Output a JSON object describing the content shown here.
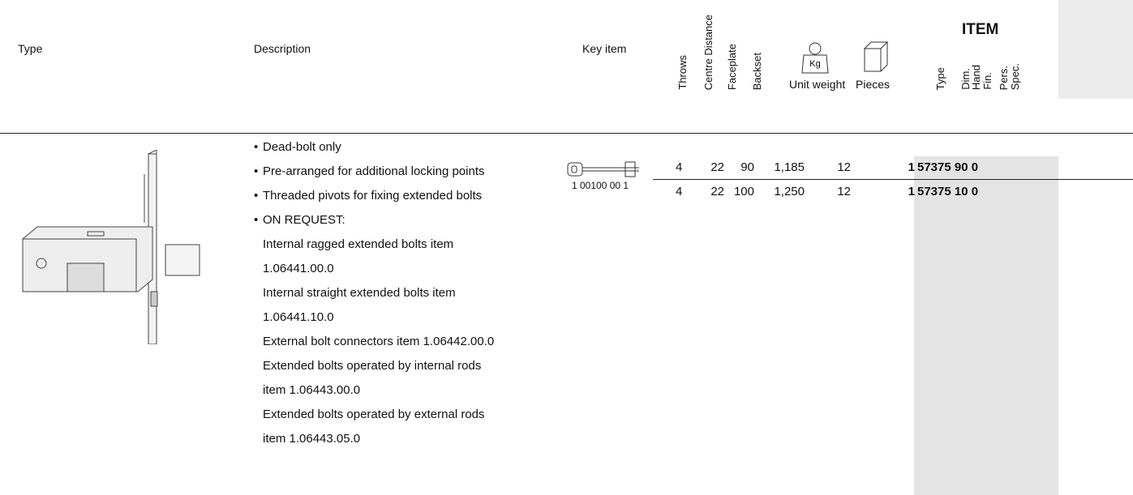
{
  "header": {
    "type": "Type",
    "description": "Description",
    "key_item": "Key item",
    "throws": "Throws",
    "centre_distance": "Centre Distance",
    "faceplate": "Faceplate",
    "backset": "Backset",
    "unit_weight": "Unit weight",
    "weight_icon": "Kg",
    "pieces": "Pieces",
    "item": "ITEM",
    "item_columns": [
      "Type",
      "Dim.",
      "Hand",
      "Fin.",
      "Pers.",
      "Spec."
    ]
  },
  "product": {
    "bullets": [
      "Dead-bolt only",
      "Pre-arranged for additional locking points",
      "Threaded pivots for fixing extended bolts",
      "ON REQUEST:"
    ],
    "on_request": [
      "Internal ragged extended bolts item",
      "1.06441.00.0",
      "Internal straight extended bolts item",
      "1.06441.10.0",
      "External bolt connectors item 1.06442.00.0",
      "Extended bolts operated by internal rods",
      "item 1.06443.00.0",
      "Extended bolts operated by external rods",
      "item 1.06443.05.0"
    ],
    "key_code": "1 00100 00 1"
  },
  "rows": [
    [
      "4",
      "22",
      "90",
      "1,185",
      "12",
      "1",
      "57375 90 0"
    ],
    [
      "4",
      "22",
      "100",
      "1,250",
      "12",
      "1",
      "57375 10 0"
    ]
  ]
}
